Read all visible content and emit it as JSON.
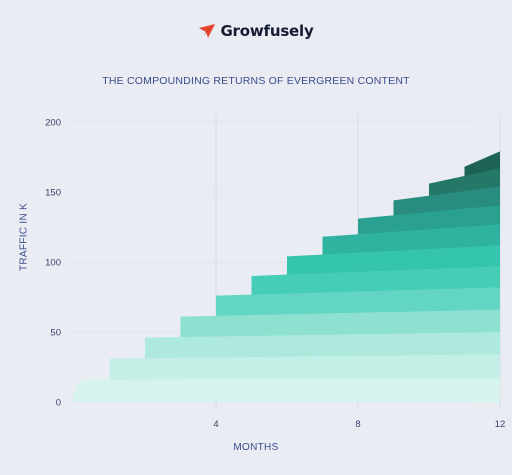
{
  "brand": {
    "name": "Growfusely",
    "icon": "paper-plane-icon",
    "icon_color": "#e8452c"
  },
  "chart_data": {
    "type": "area",
    "title": "THE COMPOUNDING RETURNS OF EVERGREEN CONTENT",
    "xlabel": "MONTHS",
    "ylabel": "TRAFFIC IN K",
    "x_ticks": [
      4,
      8,
      12
    ],
    "y_ticks": [
      0,
      50,
      100,
      150,
      200
    ],
    "xlim": [
      0,
      12.5
    ],
    "ylim": [
      0,
      200
    ],
    "grid": true,
    "series": [
      {
        "start_month": 0,
        "base": 0,
        "height": 16,
        "end_rise": 1,
        "color": "#d6f3ee"
      },
      {
        "start_month": 1,
        "base": 16,
        "height": 15,
        "end_rise": 3,
        "color": "#c4efe7"
      },
      {
        "start_month": 2,
        "base": 31,
        "height": 15,
        "end_rise": 4,
        "color": "#aee9dd"
      },
      {
        "start_month": 3,
        "base": 46,
        "height": 15,
        "end_rise": 5,
        "color": "#8ee0d1"
      },
      {
        "start_month": 4,
        "base": 61,
        "height": 15,
        "end_rise": 6,
        "color": "#62d5c3"
      },
      {
        "start_month": 5,
        "base": 76,
        "height": 14,
        "end_rise": 7,
        "color": "#45cdb8"
      },
      {
        "start_month": 6,
        "base": 90,
        "height": 14,
        "end_rise": 8,
        "color": "#35c4ad"
      },
      {
        "start_month": 7,
        "base": 104,
        "height": 14,
        "end_rise": 9,
        "color": "#2fb29f"
      },
      {
        "start_month": 8,
        "base": 118,
        "height": 13,
        "end_rise": 9.5,
        "color": "#2aa090"
      },
      {
        "start_month": 9,
        "base": 131,
        "height": 13,
        "end_rise": 10,
        "color": "#288c7e"
      },
      {
        "start_month": 10,
        "base": 144,
        "height": 12,
        "end_rise": 11,
        "color": "#237868"
      },
      {
        "start_month": 11,
        "base": 156,
        "height": 12,
        "end_rise": 11,
        "color": "#1d6353"
      }
    ]
  }
}
